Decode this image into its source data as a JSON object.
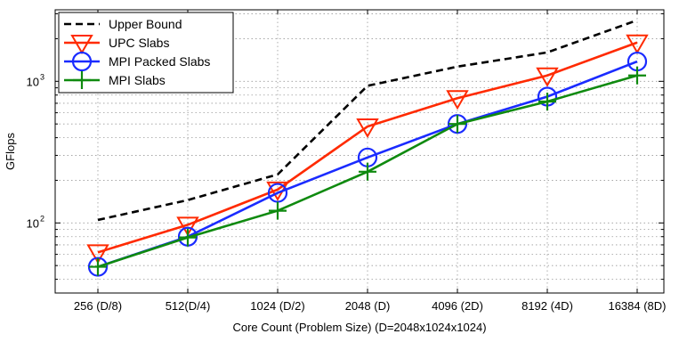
{
  "chart_data": {
    "type": "line",
    "title": "",
    "xlabel": "Core Count (Problem Size) (D=2048x1024x1024)",
    "ylabel": "GFlops",
    "yscale": "log",
    "ylim": [
      32,
      3200
    ],
    "ytick_labels": [
      {
        "base": "10",
        "exp": "2",
        "value": 100
      },
      {
        "base": "10",
        "exp": "3",
        "value": 1000
      }
    ],
    "categories": [
      "256 (D/8)",
      "512(D/4)",
      "1024 (D/2)",
      "2048 (D)",
      "4096 (2D)",
      "8192 (4D)",
      "16384 (8D)"
    ],
    "grid": true,
    "legend_position": "top-left",
    "series": [
      {
        "name": "Upper Bound",
        "color": "#000000",
        "style": "dashed",
        "marker": "none",
        "values": [
          105,
          145,
          220,
          930,
          1270,
          1600,
          2700
        ]
      },
      {
        "name": "UPC Slabs",
        "color": "#ff2a00",
        "style": "solid",
        "marker": "triangle-down",
        "values": [
          62,
          97,
          172,
          480,
          760,
          1100,
          1880
        ]
      },
      {
        "name": "MPI Packed Slabs",
        "color": "#1a2bff",
        "style": "solid",
        "marker": "circle",
        "values": [
          49,
          80,
          163,
          290,
          500,
          780,
          1380
        ]
      },
      {
        "name": "MPI Slabs",
        "color": "#0f8a0f",
        "style": "solid",
        "marker": "plus",
        "values": [
          49,
          79,
          122,
          230,
          500,
          720,
          1100
        ]
      }
    ]
  }
}
